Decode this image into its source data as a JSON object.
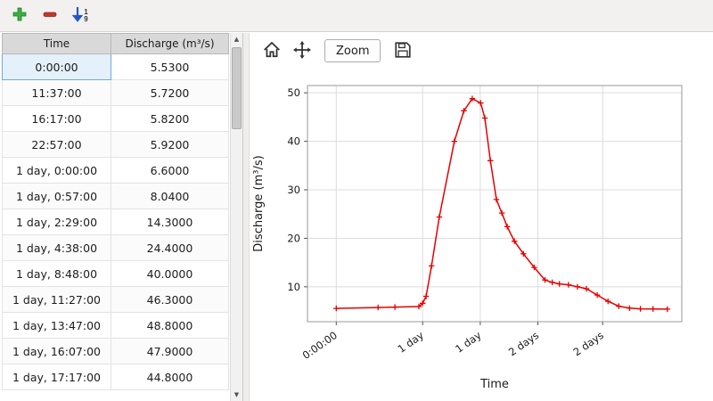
{
  "toolbar": {
    "add_icon": "plus-icon",
    "remove_icon": "minus-icon",
    "sort_icon": "sort-numeric-icon",
    "sort_digit_top": "1",
    "sort_digit_bottom": "9",
    "add_color": "#3cb043",
    "remove_color": "#c0392b",
    "sort_arrow_color": "#2257c4"
  },
  "table": {
    "columns": [
      "Time",
      "Discharge (m³/s)"
    ],
    "rows": [
      [
        "0:00:00",
        "5.5300"
      ],
      [
        "11:37:00",
        "5.7200"
      ],
      [
        "16:17:00",
        "5.8200"
      ],
      [
        "22:57:00",
        "5.9200"
      ],
      [
        "1 day, 0:00:00",
        "6.6000"
      ],
      [
        "1 day, 0:57:00",
        "8.0400"
      ],
      [
        "1 day, 2:29:00",
        "14.3000"
      ],
      [
        "1 day, 4:38:00",
        "24.4000"
      ],
      [
        "1 day, 8:48:00",
        "40.0000"
      ],
      [
        "1 day, 11:27:00",
        "46.3000"
      ],
      [
        "1 day, 13:47:00",
        "48.8000"
      ],
      [
        "1 day, 16:07:00",
        "47.9000"
      ],
      [
        "1 day, 17:17:00",
        "44.8000"
      ]
    ],
    "selected_cell": {
      "row": 0,
      "col": 0
    }
  },
  "chart_toolbar": {
    "home_icon": "home",
    "pan_icon": "pan",
    "zoom_label": "Zoom",
    "save_icon": "save"
  },
  "chart_data": {
    "type": "line",
    "title": "",
    "xlabel": "Time",
    "ylabel": "Discharge (m³/s)",
    "line_color": "#e60000",
    "marker": "+",
    "x_unit": "hours",
    "grid": true,
    "legend": false,
    "xlim": [
      -8,
      96
    ],
    "ylim": [
      2.8,
      51.5
    ],
    "x_ticks": {
      "pos": [
        0,
        24,
        40,
        56,
        74
      ],
      "labels": [
        "0:00:00",
        "1 day",
        "1 day",
        "2 days",
        "2 days"
      ]
    },
    "y_ticks": [
      10,
      20,
      30,
      40,
      50
    ],
    "series": [
      {
        "name": "Discharge",
        "x": [
          0,
          11.62,
          16.28,
          22.95,
          24,
          24.95,
          26.48,
          28.63,
          32.8,
          35.45,
          37.78,
          40.12,
          41.28,
          42.8,
          44.5,
          46,
          47.5,
          49.5,
          52,
          55,
          58,
          60,
          62,
          64.5,
          67,
          69.5,
          72.5,
          75.5,
          78.5,
          81.5,
          84.5,
          88,
          92
        ],
        "y": [
          5.53,
          5.72,
          5.82,
          5.92,
          6.6,
          8.04,
          14.3,
          24.4,
          40.0,
          46.3,
          48.8,
          47.9,
          44.8,
          36.0,
          28.0,
          25.2,
          22.4,
          19.4,
          16.8,
          14.0,
          11.4,
          10.9,
          10.6,
          10.4,
          10.0,
          9.6,
          8.3,
          7.0,
          6.0,
          5.6,
          5.45,
          5.42,
          5.4
        ]
      }
    ]
  }
}
